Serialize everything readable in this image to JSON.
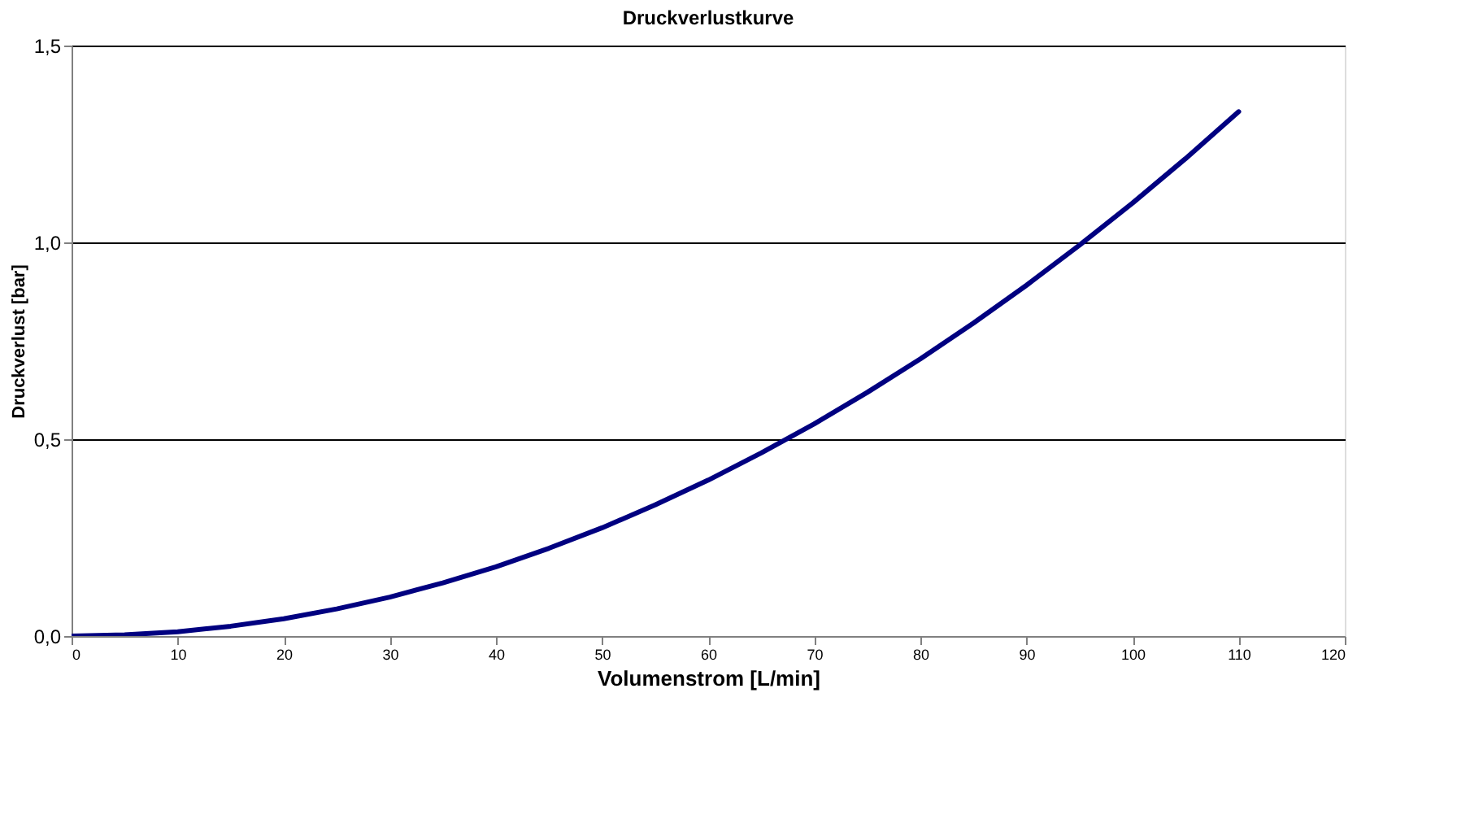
{
  "chart_data": {
    "type": "line",
    "title": "Druckverlustkurve",
    "xlabel": "Volumenstrom [L/min]",
    "ylabel": "Druckverlust [bar]",
    "x": [
      0,
      5,
      10,
      15,
      20,
      25,
      30,
      35,
      40,
      45,
      50,
      55,
      60,
      65,
      70,
      75,
      80,
      85,
      90,
      95,
      100,
      105,
      110
    ],
    "series": [
      {
        "color": "#000080",
        "values": [
          0,
          0.003,
          0.011,
          0.025,
          0.044,
          0.069,
          0.099,
          0.135,
          0.176,
          0.223,
          0.275,
          0.333,
          0.396,
          0.465,
          0.539,
          0.619,
          0.704,
          0.795,
          0.891,
          0.993,
          1.1,
          1.213,
          1.332
        ]
      }
    ],
    "xlim": [
      0,
      120
    ],
    "xticks": [
      0,
      10,
      20,
      30,
      40,
      50,
      60,
      70,
      80,
      90,
      100,
      110,
      120
    ],
    "ylim": [
      0,
      1.5
    ],
    "yticks": [
      {
        "value": 0,
        "label": "0,0"
      },
      {
        "value": 0.5,
        "label": "0,5"
      },
      {
        "value": 1,
        "label": "1,0"
      },
      {
        "value": 1.5,
        "label": "1,5"
      }
    ],
    "grid": "y",
    "legend": false,
    "marker": "none",
    "line_style": "solid"
  }
}
